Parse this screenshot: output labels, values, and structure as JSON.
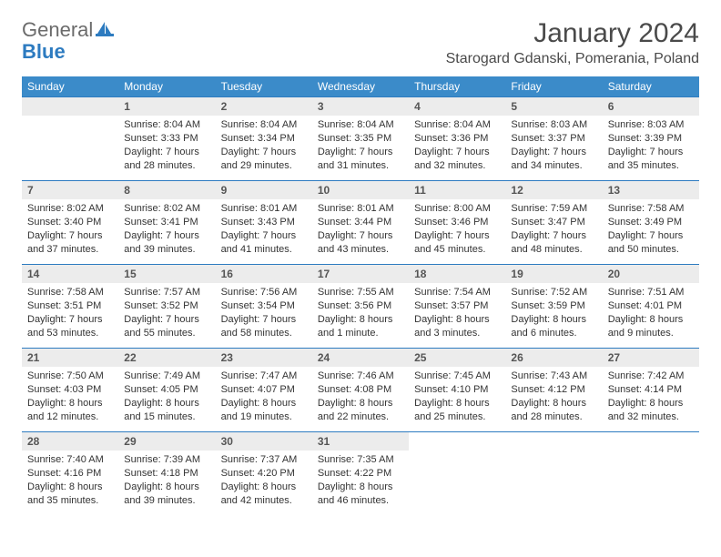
{
  "logo": {
    "text_gray": "General",
    "text_blue": "Blue"
  },
  "title": "January 2024",
  "location": "Starogard Gdanski, Pomerania, Poland",
  "colors": {
    "header_bg": "#3b8bc9",
    "header_text": "#ffffff",
    "daynum_bg": "#ececec",
    "daynum_border": "#2d7bc0",
    "body_text": "#333333",
    "logo_gray": "#6b6b6b",
    "logo_blue": "#2d7bc0"
  },
  "weekdays": [
    "Sunday",
    "Monday",
    "Tuesday",
    "Wednesday",
    "Thursday",
    "Friday",
    "Saturday"
  ],
  "weeks": [
    [
      null,
      {
        "n": "1",
        "sunrise": "8:04 AM",
        "sunset": "3:33 PM",
        "daylight": "7 hours and 28 minutes."
      },
      {
        "n": "2",
        "sunrise": "8:04 AM",
        "sunset": "3:34 PM",
        "daylight": "7 hours and 29 minutes."
      },
      {
        "n": "3",
        "sunrise": "8:04 AM",
        "sunset": "3:35 PM",
        "daylight": "7 hours and 31 minutes."
      },
      {
        "n": "4",
        "sunrise": "8:04 AM",
        "sunset": "3:36 PM",
        "daylight": "7 hours and 32 minutes."
      },
      {
        "n": "5",
        "sunrise": "8:03 AM",
        "sunset": "3:37 PM",
        "daylight": "7 hours and 34 minutes."
      },
      {
        "n": "6",
        "sunrise": "8:03 AM",
        "sunset": "3:39 PM",
        "daylight": "7 hours and 35 minutes."
      }
    ],
    [
      {
        "n": "7",
        "sunrise": "8:02 AM",
        "sunset": "3:40 PM",
        "daylight": "7 hours and 37 minutes."
      },
      {
        "n": "8",
        "sunrise": "8:02 AM",
        "sunset": "3:41 PM",
        "daylight": "7 hours and 39 minutes."
      },
      {
        "n": "9",
        "sunrise": "8:01 AM",
        "sunset": "3:43 PM",
        "daylight": "7 hours and 41 minutes."
      },
      {
        "n": "10",
        "sunrise": "8:01 AM",
        "sunset": "3:44 PM",
        "daylight": "7 hours and 43 minutes."
      },
      {
        "n": "11",
        "sunrise": "8:00 AM",
        "sunset": "3:46 PM",
        "daylight": "7 hours and 45 minutes."
      },
      {
        "n": "12",
        "sunrise": "7:59 AM",
        "sunset": "3:47 PM",
        "daylight": "7 hours and 48 minutes."
      },
      {
        "n": "13",
        "sunrise": "7:58 AM",
        "sunset": "3:49 PM",
        "daylight": "7 hours and 50 minutes."
      }
    ],
    [
      {
        "n": "14",
        "sunrise": "7:58 AM",
        "sunset": "3:51 PM",
        "daylight": "7 hours and 53 minutes."
      },
      {
        "n": "15",
        "sunrise": "7:57 AM",
        "sunset": "3:52 PM",
        "daylight": "7 hours and 55 minutes."
      },
      {
        "n": "16",
        "sunrise": "7:56 AM",
        "sunset": "3:54 PM",
        "daylight": "7 hours and 58 minutes."
      },
      {
        "n": "17",
        "sunrise": "7:55 AM",
        "sunset": "3:56 PM",
        "daylight": "8 hours and 1 minute."
      },
      {
        "n": "18",
        "sunrise": "7:54 AM",
        "sunset": "3:57 PM",
        "daylight": "8 hours and 3 minutes."
      },
      {
        "n": "19",
        "sunrise": "7:52 AM",
        "sunset": "3:59 PM",
        "daylight": "8 hours and 6 minutes."
      },
      {
        "n": "20",
        "sunrise": "7:51 AM",
        "sunset": "4:01 PM",
        "daylight": "8 hours and 9 minutes."
      }
    ],
    [
      {
        "n": "21",
        "sunrise": "7:50 AM",
        "sunset": "4:03 PM",
        "daylight": "8 hours and 12 minutes."
      },
      {
        "n": "22",
        "sunrise": "7:49 AM",
        "sunset": "4:05 PM",
        "daylight": "8 hours and 15 minutes."
      },
      {
        "n": "23",
        "sunrise": "7:47 AM",
        "sunset": "4:07 PM",
        "daylight": "8 hours and 19 minutes."
      },
      {
        "n": "24",
        "sunrise": "7:46 AM",
        "sunset": "4:08 PM",
        "daylight": "8 hours and 22 minutes."
      },
      {
        "n": "25",
        "sunrise": "7:45 AM",
        "sunset": "4:10 PM",
        "daylight": "8 hours and 25 minutes."
      },
      {
        "n": "26",
        "sunrise": "7:43 AM",
        "sunset": "4:12 PM",
        "daylight": "8 hours and 28 minutes."
      },
      {
        "n": "27",
        "sunrise": "7:42 AM",
        "sunset": "4:14 PM",
        "daylight": "8 hours and 32 minutes."
      }
    ],
    [
      {
        "n": "28",
        "sunrise": "7:40 AM",
        "sunset": "4:16 PM",
        "daylight": "8 hours and 35 minutes."
      },
      {
        "n": "29",
        "sunrise": "7:39 AM",
        "sunset": "4:18 PM",
        "daylight": "8 hours and 39 minutes."
      },
      {
        "n": "30",
        "sunrise": "7:37 AM",
        "sunset": "4:20 PM",
        "daylight": "8 hours and 42 minutes."
      },
      {
        "n": "31",
        "sunrise": "7:35 AM",
        "sunset": "4:22 PM",
        "daylight": "8 hours and 46 minutes."
      },
      null,
      null,
      null
    ]
  ],
  "labels": {
    "sunrise": "Sunrise:",
    "sunset": "Sunset:",
    "daylight": "Daylight:"
  }
}
